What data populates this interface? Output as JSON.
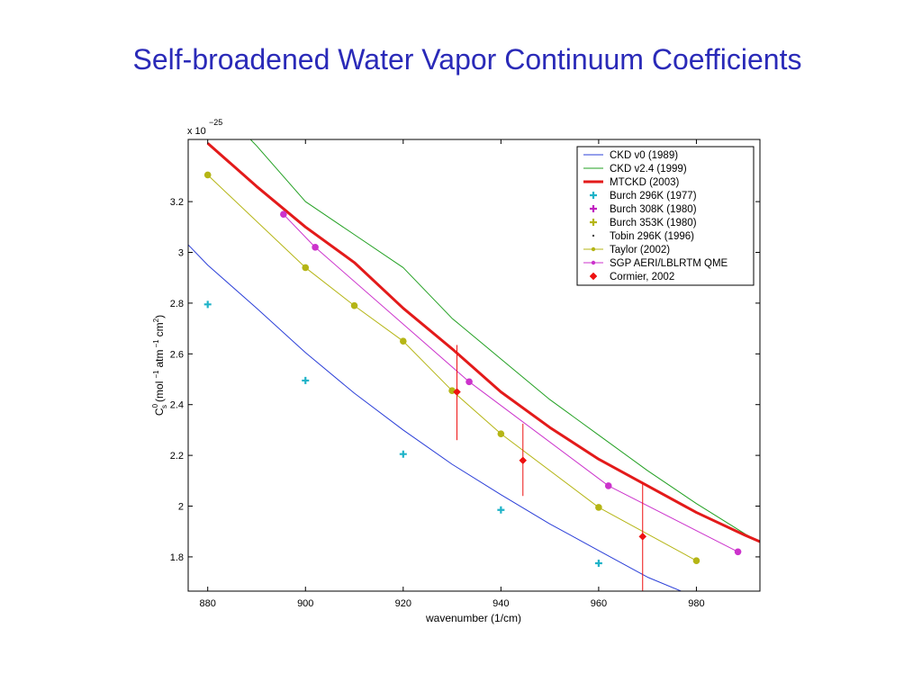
{
  "slide": {
    "title": "Self-broadened Water Vapor Continuum Coefficients"
  },
  "chart_data": {
    "type": "line",
    "xlabel": "wavenumber (1/cm)",
    "ylabel_parts": {
      "c": "C",
      "sup0": "0",
      "subs": "s",
      "unit_a": "(mol",
      "exp_a": "−1",
      "unit_b": "atm",
      "exp_b": "−1",
      "unit_c": "cm",
      "exp_c": "2",
      "close": ")"
    },
    "y_multiplier": {
      "base": "x 10",
      "exponent": "−25"
    },
    "xlim": [
      876,
      993
    ],
    "ylim": [
      1.665,
      3.445
    ],
    "xticks": [
      880,
      900,
      920,
      940,
      960,
      980
    ],
    "yticks": [
      1.8,
      2.0,
      2.2,
      2.4,
      2.6,
      2.8,
      3.0,
      3.2
    ],
    "ytick_labels": [
      "1.8",
      "2",
      "2.2",
      "2.4",
      "2.6",
      "2.8",
      "3",
      "3.2"
    ],
    "legend_position": "top-right",
    "series": [
      {
        "name": "CKD v0 (1989)",
        "kind": "line",
        "color": "#2b3fd8",
        "x": [
          876,
          880,
          890,
          900,
          910,
          920,
          930,
          940,
          950,
          960,
          970,
          980,
          990,
          993
        ],
        "y": [
          3.03,
          2.95,
          2.78,
          2.605,
          2.445,
          2.3,
          2.165,
          2.045,
          1.93,
          1.825,
          1.72,
          1.64,
          1.57,
          1.55
        ]
      },
      {
        "name": "CKD v2.4 (1999)",
        "kind": "line",
        "color": "#22a022",
        "x": [
          880,
          890,
          900,
          910,
          920,
          930,
          940,
          950,
          960,
          970,
          980,
          990,
          993
        ],
        "y": [
          3.62,
          3.42,
          3.2,
          3.07,
          2.94,
          2.74,
          2.58,
          2.42,
          2.28,
          2.14,
          2.01,
          1.89,
          1.86
        ]
      },
      {
        "name": "MTCKD (2003)",
        "kind": "line",
        "color": "#e31a1a",
        "x": [
          880,
          890,
          900,
          910,
          920,
          930,
          940,
          950,
          960,
          970,
          980,
          990,
          993
        ],
        "y": [
          3.43,
          3.26,
          3.1,
          2.96,
          2.78,
          2.62,
          2.45,
          2.31,
          2.185,
          2.08,
          1.975,
          1.885,
          1.86
        ]
      },
      {
        "name": "Burch 296K (1977)",
        "kind": "plus",
        "color": "#1fb3c8",
        "x": [
          880,
          900,
          920,
          940,
          960
        ],
        "y": [
          2.795,
          2.495,
          2.205,
          1.985,
          1.775
        ]
      },
      {
        "name": "Burch 308K (1980)",
        "kind": "plus",
        "color": "#c020c0",
        "x": [],
        "y": []
      },
      {
        "name": "Burch 353K (1980)",
        "kind": "plus",
        "color": "#b5b515",
        "x": [],
        "y": []
      },
      {
        "name": "Tobin 296K (1996)",
        "kind": "dot",
        "color": "#444444",
        "x": [],
        "y": []
      },
      {
        "name": "Taylor (2002)",
        "kind": "line-marker",
        "color": "#b5b515",
        "x": [
          880,
          900,
          910,
          920,
          930,
          940,
          960,
          980
        ],
        "y": [
          3.305,
          2.94,
          2.79,
          2.65,
          2.455,
          2.285,
          1.995,
          1.785
        ]
      },
      {
        "name": "SGP AERI/LBLRTM QME",
        "kind": "line-marker",
        "color": "#cc33cc",
        "x": [
          895.5,
          902,
          933.5,
          962,
          988.5
        ],
        "y": [
          3.15,
          3.02,
          2.49,
          2.08,
          1.82
        ]
      },
      {
        "name": "Cormier, 2002",
        "kind": "diamond-err",
        "color": "#ee1111",
        "x": [
          931,
          944.5,
          969
        ],
        "y": [
          2.45,
          2.18,
          1.88
        ],
        "err_low": [
          2.26,
          2.04,
          1.665
        ],
        "err_high": [
          2.635,
          2.325,
          2.095
        ]
      }
    ]
  }
}
